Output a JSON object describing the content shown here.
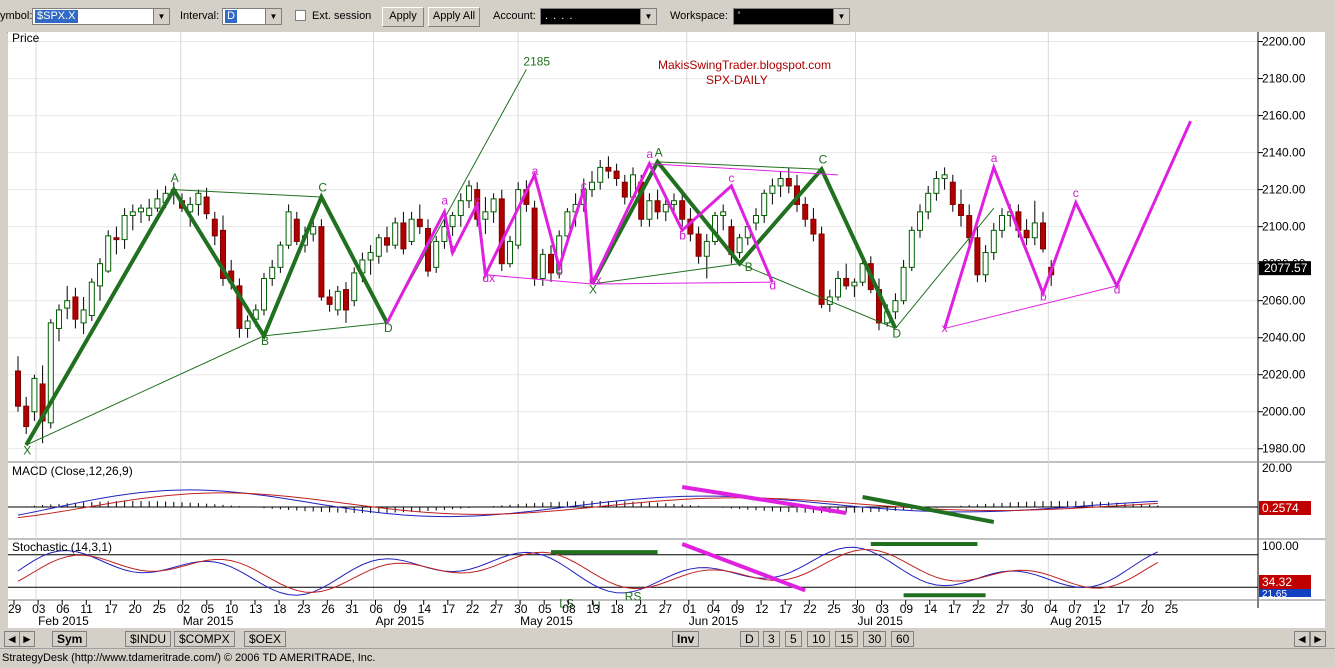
{
  "toolbar": {
    "symbol_label": "ymbol:",
    "symbol_value": "$SPX.X",
    "interval_label": "Interval:",
    "interval_value": "D",
    "ext_session_label": "Ext. session",
    "apply_label": "Apply",
    "apply_all_label": "Apply All",
    "account_label": "Account:",
    "account_value": ". . . .",
    "workspace_label": "Workspace:",
    "workspace_value": "'"
  },
  "chart_data": {
    "type": "candlestick",
    "title": "MakisSwingTrader.blogspot.com",
    "subtitle": "SPX-DAILY",
    "price_panel_label": "Price",
    "last_price": "2077.57",
    "yticks": [
      "2200.00",
      "2180.00",
      "2160.00",
      "2140.00",
      "2120.00",
      "2100.00",
      "2080.00",
      "2060.00",
      "2040.00",
      "2020.00",
      "2000.00",
      "1980.00"
    ],
    "ylim": [
      1975,
      2203
    ],
    "xticks": [
      "29",
      "03",
      "06",
      "11",
      "17",
      "20",
      "25",
      "02",
      "05",
      "10",
      "13",
      "18",
      "23",
      "26",
      "31",
      "06",
      "09",
      "14",
      "17",
      "22",
      "27",
      "30",
      "05",
      "08",
      "13",
      "18",
      "21",
      "27",
      "01",
      "04",
      "09",
      "12",
      "17",
      "22",
      "25",
      "30",
      "03",
      "09",
      "14",
      "17",
      "22",
      "27",
      "30",
      "04",
      "07",
      "12",
      "17",
      "20",
      "25"
    ],
    "months": [
      {
        "label": "Feb 2015",
        "i": 2
      },
      {
        "label": "Mar 2015",
        "i": 21
      },
      {
        "label": "Apr 2015",
        "i": 41
      },
      {
        "label": "May 2015",
        "i": 62
      },
      {
        "label": "Jun 2015",
        "i": 83
      },
      {
        "label": "Jul 2015",
        "i": 105
      },
      {
        "label": "Aug 2015",
        "i": 127
      }
    ],
    "candles": [
      [
        0,
        2022,
        2030,
        2000,
        2003
      ],
      [
        1,
        2003,
        2008,
        1988,
        1992
      ],
      [
        2,
        2000,
        2020,
        1995,
        2018
      ],
      [
        3,
        2015,
        2025,
        1983,
        1995
      ],
      [
        4,
        1994,
        2050,
        1991,
        2048
      ],
      [
        5,
        2045,
        2058,
        2038,
        2055
      ],
      [
        6,
        2056,
        2068,
        2050,
        2060
      ],
      [
        7,
        2062,
        2067,
        2045,
        2050
      ],
      [
        8,
        2048,
        2062,
        2042,
        2055
      ],
      [
        9,
        2052,
        2072,
        2049,
        2070
      ],
      [
        10,
        2068,
        2083,
        2060,
        2080
      ],
      [
        11,
        2076,
        2098,
        2075,
        2095
      ],
      [
        12,
        2094,
        2100,
        2085,
        2093
      ],
      [
        13,
        2093,
        2110,
        2088,
        2106
      ],
      [
        14,
        2106,
        2112,
        2098,
        2108
      ],
      [
        15,
        2108,
        2112,
        2102,
        2110
      ],
      [
        16,
        2106,
        2115,
        2103,
        2110
      ],
      [
        17,
        2110,
        2120,
        2108,
        2115
      ],
      [
        18,
        2113,
        2122,
        2110,
        2118
      ],
      [
        19,
        2118,
        2124,
        2112,
        2120
      ],
      [
        20,
        2114,
        2118,
        2108,
        2110
      ],
      [
        21,
        2108,
        2116,
        2100,
        2112
      ],
      [
        22,
        2112,
        2120,
        2106,
        2118
      ],
      [
        23,
        2116,
        2121,
        2104,
        2107
      ],
      [
        24,
        2104,
        2108,
        2090,
        2095
      ],
      [
        25,
        2098,
        2106,
        2068,
        2072
      ],
      [
        26,
        2076,
        2082,
        2066,
        2070
      ],
      [
        27,
        2068,
        2072,
        2040,
        2045
      ],
      [
        28,
        2045,
        2052,
        2040,
        2049
      ],
      [
        29,
        2050,
        2058,
        2046,
        2055
      ],
      [
        30,
        2055,
        2075,
        2052,
        2072
      ],
      [
        31,
        2072,
        2082,
        2068,
        2078
      ],
      [
        32,
        2078,
        2092,
        2075,
        2090
      ],
      [
        33,
        2090,
        2112,
        2088,
        2108
      ],
      [
        34,
        2104,
        2108,
        2090,
        2092
      ],
      [
        35,
        2090,
        2100,
        2086,
        2095
      ],
      [
        36,
        2096,
        2106,
        2092,
        2100
      ],
      [
        37,
        2100,
        2104,
        2060,
        2062
      ],
      [
        38,
        2062,
        2066,
        2054,
        2058
      ],
      [
        39,
        2055,
        2068,
        2052,
        2065
      ],
      [
        40,
        2066,
        2070,
        2048,
        2055
      ],
      [
        41,
        2060,
        2078,
        2057,
        2075
      ],
      [
        42,
        2075,
        2086,
        2070,
        2082
      ],
      [
        43,
        2082,
        2090,
        2074,
        2086
      ],
      [
        44,
        2084,
        2096,
        2080,
        2094
      ],
      [
        45,
        2094,
        2100,
        2086,
        2090
      ],
      [
        46,
        2090,
        2105,
        2088,
        2102
      ],
      [
        47,
        2102,
        2108,
        2085,
        2088
      ],
      [
        48,
        2092,
        2108,
        2090,
        2104
      ],
      [
        49,
        2104,
        2112,
        2096,
        2100
      ],
      [
        50,
        2099,
        2104,
        2073,
        2076
      ],
      [
        51,
        2078,
        2095,
        2075,
        2092
      ],
      [
        52,
        2092,
        2104,
        2088,
        2100
      ],
      [
        53,
        2100,
        2108,
        2095,
        2106
      ],
      [
        54,
        2106,
        2118,
        2100,
        2114
      ],
      [
        55,
        2114,
        2125,
        2110,
        2122
      ],
      [
        56,
        2120,
        2124,
        2100,
        2104
      ],
      [
        57,
        2104,
        2116,
        2096,
        2108
      ],
      [
        58,
        2108,
        2118,
        2102,
        2115
      ],
      [
        59,
        2115,
        2120,
        2076,
        2080
      ],
      [
        60,
        2080,
        2095,
        2078,
        2092
      ],
      [
        61,
        2090,
        2124,
        2088,
        2120
      ],
      [
        62,
        2120,
        2125,
        2108,
        2112
      ],
      [
        63,
        2110,
        2114,
        2068,
        2072
      ],
      [
        64,
        2072,
        2088,
        2068,
        2085
      ],
      [
        65,
        2085,
        2090,
        2070,
        2075
      ],
      [
        66,
        2075,
        2098,
        2072,
        2095
      ],
      [
        67,
        2095,
        2110,
        2090,
        2108
      ],
      [
        68,
        2108,
        2118,
        2100,
        2112
      ],
      [
        69,
        2112,
        2126,
        2108,
        2120
      ],
      [
        70,
        2120,
        2130,
        2116,
        2124
      ],
      [
        71,
        2124,
        2136,
        2120,
        2132
      ],
      [
        72,
        2132,
        2138,
        2126,
        2130
      ],
      [
        73,
        2130,
        2134,
        2122,
        2126
      ],
      [
        74,
        2124,
        2128,
        2112,
        2116
      ],
      [
        75,
        2116,
        2132,
        2114,
        2128
      ],
      [
        76,
        2124,
        2128,
        2100,
        2104
      ],
      [
        77,
        2104,
        2118,
        2100,
        2114
      ],
      [
        78,
        2114,
        2120,
        2104,
        2108
      ],
      [
        79,
        2108,
        2116,
        2103,
        2112
      ],
      [
        80,
        2112,
        2118,
        2106,
        2114
      ],
      [
        81,
        2114,
        2120,
        2100,
        2104
      ],
      [
        82,
        2104,
        2110,
        2092,
        2096
      ],
      [
        83,
        2096,
        2100,
        2080,
        2084
      ],
      [
        84,
        2084,
        2096,
        2072,
        2092
      ],
      [
        85,
        2092,
        2108,
        2090,
        2106
      ],
      [
        86,
        2106,
        2112,
        2098,
        2108
      ],
      [
        87,
        2100,
        2104,
        2080,
        2085
      ],
      [
        88,
        2086,
        2096,
        2083,
        2094
      ],
      [
        89,
        2094,
        2102,
        2090,
        2100
      ],
      [
        90,
        2102,
        2110,
        2098,
        2106
      ],
      [
        91,
        2106,
        2120,
        2102,
        2118
      ],
      [
        92,
        2118,
        2126,
        2112,
        2122
      ],
      [
        93,
        2122,
        2130,
        2116,
        2126
      ],
      [
        94,
        2126,
        2132,
        2118,
        2122
      ],
      [
        95,
        2122,
        2128,
        2108,
        2112
      ],
      [
        96,
        2112,
        2116,
        2100,
        2104
      ],
      [
        97,
        2104,
        2110,
        2092,
        2096
      ],
      [
        98,
        2096,
        2100,
        2056,
        2058
      ],
      [
        99,
        2058,
        2066,
        2054,
        2062
      ],
      [
        100,
        2062,
        2076,
        2060,
        2072
      ],
      [
        101,
        2072,
        2080,
        2066,
        2068
      ],
      [
        102,
        2068,
        2072,
        2062,
        2070
      ],
      [
        103,
        2070,
        2082,
        2068,
        2080
      ],
      [
        104,
        2080,
        2084,
        2064,
        2066
      ],
      [
        105,
        2066,
        2072,
        2044,
        2048
      ],
      [
        106,
        2048,
        2058,
        2046,
        2054
      ],
      [
        107,
        2054,
        2064,
        2050,
        2060
      ],
      [
        108,
        2060,
        2082,
        2058,
        2078
      ],
      [
        109,
        2078,
        2100,
        2076,
        2098
      ],
      [
        110,
        2098,
        2112,
        2094,
        2108
      ],
      [
        111,
        2108,
        2122,
        2104,
        2118
      ],
      [
        112,
        2118,
        2130,
        2114,
        2126
      ],
      [
        113,
        2126,
        2132,
        2120,
        2128
      ],
      [
        114,
        2124,
        2128,
        2108,
        2112
      ],
      [
        115,
        2112,
        2120,
        2100,
        2106
      ],
      [
        116,
        2106,
        2112,
        2090,
        2094
      ],
      [
        117,
        2094,
        2100,
        2070,
        2074
      ],
      [
        118,
        2074,
        2090,
        2070,
        2086
      ],
      [
        119,
        2086,
        2102,
        2082,
        2098
      ],
      [
        120,
        2098,
        2110,
        2094,
        2106
      ],
      [
        121,
        2106,
        2112,
        2100,
        2108
      ],
      [
        122,
        2108,
        2112,
        2094,
        2098
      ],
      [
        123,
        2098,
        2104,
        2090,
        2094
      ],
      [
        124,
        2094,
        2114,
        2090,
        2102
      ],
      [
        125,
        2102,
        2108,
        2086,
        2088
      ],
      [
        126,
        2078,
        2082,
        2068,
        2074
      ]
    ],
    "patterns_green": [
      {
        "points": [
          [
            1,
            1982
          ],
          [
            19,
            2120
          ],
          [
            30,
            2041
          ],
          [
            37,
            2116
          ],
          [
            45,
            2048
          ]
        ]
      },
      {
        "points": [
          [
            70,
            2069
          ],
          [
            78,
            2135
          ],
          [
            88,
            2080
          ],
          [
            98,
            2131
          ],
          [
            107,
            2045
          ]
        ]
      }
    ],
    "pattern_annotations": [
      {
        "text": "X",
        "i": 1,
        "v": 1977,
        "color": "green"
      },
      {
        "text": "A",
        "i": 19,
        "v": 2124,
        "color": "green"
      },
      {
        "text": "B",
        "i": 30,
        "v": 2036,
        "color": "green"
      },
      {
        "text": "C",
        "i": 37,
        "v": 2119,
        "color": "green"
      },
      {
        "text": "D",
        "i": 45,
        "v": 2043,
        "color": "green"
      },
      {
        "text": "2185",
        "i": 62,
        "v": 2187,
        "color": "green"
      },
      {
        "text": "X",
        "i": 70,
        "v": 2064,
        "color": "green"
      },
      {
        "text": "A",
        "i": 78,
        "v": 2138,
        "color": "green"
      },
      {
        "text": "B",
        "i": 89,
        "v": 2076,
        "color": "green"
      },
      {
        "text": "C",
        "i": 98,
        "v": 2134,
        "color": "green"
      },
      {
        "text": "D",
        "i": 107,
        "v": 2040,
        "color": "green"
      },
      {
        "text": "a",
        "i": 52,
        "v": 2112,
        "color": "magenta"
      },
      {
        "text": "b",
        "i": 53,
        "v": 2086,
        "color": "magenta"
      },
      {
        "text": "c",
        "i": 56,
        "v": 2112,
        "color": "magenta"
      },
      {
        "text": "dx",
        "i": 57,
        "v": 2070,
        "color": "magenta"
      },
      {
        "text": "a",
        "i": 63,
        "v": 2128,
        "color": "magenta"
      },
      {
        "text": "b",
        "i": 66,
        "v": 2074,
        "color": "magenta"
      },
      {
        "text": "c",
        "i": 69,
        "v": 2120,
        "color": "magenta"
      },
      {
        "text": "dx",
        "i": 70,
        "v": 2069,
        "color": "magenta"
      },
      {
        "text": "a",
        "i": 77,
        "v": 2137,
        "color": "magenta"
      },
      {
        "text": "b",
        "i": 81,
        "v": 2093,
        "color": "magenta"
      },
      {
        "text": "c",
        "i": 87,
        "v": 2124,
        "color": "magenta"
      },
      {
        "text": "d",
        "i": 92,
        "v": 2066,
        "color": "magenta"
      },
      {
        "text": "a",
        "i": 119,
        "v": 2135,
        "color": "magenta"
      },
      {
        "text": "b",
        "i": 125,
        "v": 2060,
        "color": "magenta"
      },
      {
        "text": "c",
        "i": 129,
        "v": 2116,
        "color": "magenta"
      },
      {
        "text": "d",
        "i": 134,
        "v": 2064,
        "color": "magenta"
      },
      {
        "text": "x",
        "i": 113,
        "v": 2043,
        "color": "magenta"
      }
    ],
    "macd": {
      "label": "MACD (Close,12,26,9)",
      "ytick": "20.00",
      "last": "0.2574",
      "ylim": [
        -25,
        25
      ]
    },
    "stochastic": {
      "label": "Stochastic (14,3,1)",
      "ytick_top": "100.00",
      "last": "34.32",
      "last2": "21.65",
      "annotations": [
        {
          "text": "LS",
          "i": 66,
          "v": 5
        },
        {
          "text": "H",
          "i": 70,
          "v": 0
        },
        {
          "text": "RS",
          "i": 74,
          "v": 18
        }
      ]
    }
  },
  "bottom_tabs": {
    "sym": "Sym",
    "tabs": [
      "$INDU",
      "$COMPX",
      "$OEX"
    ],
    "inv": "Inv",
    "periods": [
      "D",
      "3",
      "5",
      "10",
      "15",
      "30",
      "60"
    ]
  },
  "status": {
    "text": "StrategyDesk (http://www.tdameritrade.com/) © 2006 TD AMERITRADE, Inc."
  }
}
